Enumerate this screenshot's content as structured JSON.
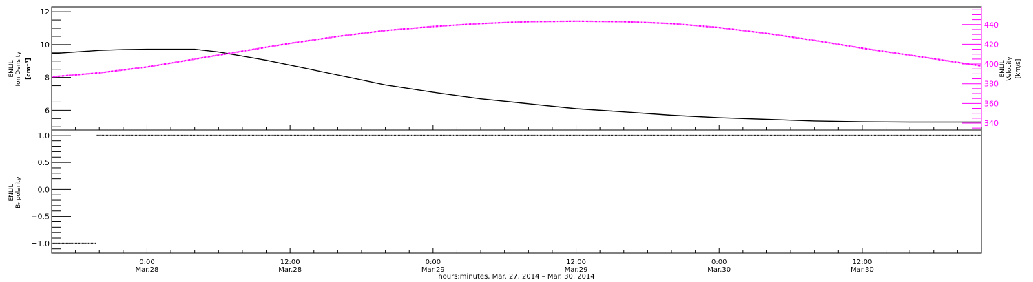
{
  "figure": {
    "xaxis_title": "hours:minutes, Mar. 27, 2014 – Mar. 30, 2014",
    "x_ticks": [
      {
        "time": "0:00",
        "date": "Mar.28",
        "hours": 8
      },
      {
        "time": "12:00",
        "date": "Mar.28",
        "hours": 20
      },
      {
        "time": "0:00",
        "date": "Mar.29",
        "hours": 32
      },
      {
        "time": "12:00",
        "date": "Mar.29",
        "hours": 44
      },
      {
        "time": "0:00",
        "date": "Mar.30",
        "hours": 56
      },
      {
        "time": "12:00",
        "date": "Mar.30",
        "hours": 68
      }
    ]
  },
  "colors": {
    "density": "#000000",
    "velocity": "#ff00ff",
    "polarity": "#000000",
    "frame": "#000000"
  },
  "chart_data": [
    {
      "type": "line",
      "x_unit": "hours since Mar. 27, 2014 16:00",
      "xlim": [
        0,
        78
      ],
      "left_axis": {
        "label_line1": "ENLIL",
        "label_line2": "Ion Density",
        "unit": "[cm⁻³]",
        "ylim": [
          4.8,
          12.3
        ],
        "ticks": [
          6,
          8,
          10,
          12
        ]
      },
      "right_axis": {
        "label_line1": "ENLIL",
        "label_line2": "Velocity",
        "unit": "[km/s]",
        "ylim": [
          333,
          458
        ],
        "ticks": [
          340,
          360,
          380,
          400,
          420,
          440
        ]
      },
      "series": [
        {
          "name": "Ion Density",
          "axis": "left",
          "x": [
            0,
            2,
            4,
            6,
            8,
            10,
            12,
            14,
            16,
            18,
            20,
            24,
            28,
            32,
            36,
            40,
            44,
            48,
            52,
            56,
            60,
            64,
            68,
            72,
            78
          ],
          "y": [
            9.45,
            9.55,
            9.65,
            9.7,
            9.72,
            9.72,
            9.72,
            9.55,
            9.3,
            9.05,
            8.75,
            8.15,
            7.55,
            7.1,
            6.7,
            6.4,
            6.1,
            5.9,
            5.7,
            5.55,
            5.45,
            5.35,
            5.3,
            5.28,
            5.28
          ]
        },
        {
          "name": "Velocity",
          "axis": "right",
          "x": [
            0,
            4,
            8,
            12,
            16,
            20,
            24,
            28,
            32,
            36,
            40,
            44,
            48,
            52,
            56,
            60,
            64,
            68,
            72,
            78
          ],
          "y": [
            387,
            391,
            397,
            405,
            413,
            421,
            428,
            434,
            438,
            441,
            443,
            443.5,
            443,
            441,
            437,
            431,
            424,
            416,
            409,
            398
          ]
        }
      ]
    },
    {
      "type": "line",
      "x_unit": "hours since Mar. 27, 2014 16:00",
      "xlim": [
        0,
        78
      ],
      "left_axis": {
        "label_line1": "ENLIL",
        "label_line2": "Bᵣ polarity",
        "ylim": [
          -1.18,
          1.1
        ],
        "ticks": [
          -1.0,
          -0.5,
          0.0,
          0.5,
          1.0
        ],
        "tick_labels": [
          "−1.0",
          "−0.5",
          "0.0",
          "0.5",
          "1.0"
        ]
      },
      "series": [
        {
          "name": "B polarity",
          "segments": [
            {
              "x": [
                0,
                3.7
              ],
              "y": [
                -1,
                -1
              ]
            },
            {
              "x": [
                3.7,
                78
              ],
              "y": [
                1,
                1
              ]
            }
          ]
        }
      ]
    }
  ]
}
